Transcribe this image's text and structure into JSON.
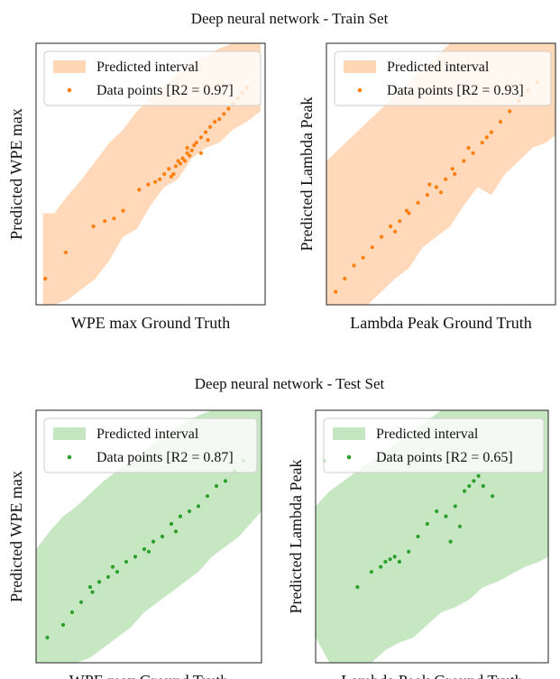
{
  "figure": {
    "train_title": "Deep neural network - Train Set",
    "test_title": "Deep neural network - Test Set"
  },
  "colors": {
    "train_fill": "#ffd7b5",
    "train_point": "#ff7f0e",
    "test_fill": "#c4e6c0",
    "test_point": "#2ca02c"
  },
  "chart_data": [
    {
      "type": "scatter",
      "title": "",
      "xlabel": "WPE max Ground Truth",
      "ylabel": "Predicted WPE max",
      "xlim": [
        0,
        1
      ],
      "ylim": [
        0,
        1
      ],
      "legend": {
        "position": "top-left",
        "interval_label": "Predicted interval",
        "points_label": "Data points [R2 = 0.97]"
      },
      "interval": {
        "x": [
          0.03,
          0.08,
          0.14,
          0.2,
          0.26,
          0.32,
          0.38,
          0.44,
          0.5,
          0.56,
          0.62,
          0.68,
          0.74,
          0.8,
          0.86,
          0.92,
          0.98
        ],
        "lower": [
          0.0,
          0.0,
          0.02,
          0.06,
          0.1,
          0.17,
          0.26,
          0.29,
          0.38,
          0.45,
          0.48,
          0.56,
          0.6,
          0.62,
          0.67,
          0.7,
          0.74
        ],
        "upper": [
          0.35,
          0.35,
          0.42,
          0.48,
          0.55,
          0.62,
          0.67,
          0.74,
          0.79,
          0.84,
          0.89,
          0.93,
          0.95,
          0.98,
          1.0,
          1.0,
          1.0
        ]
      },
      "points": {
        "x": [
          0.04,
          0.13,
          0.25,
          0.3,
          0.34,
          0.38,
          0.45,
          0.49,
          0.52,
          0.54,
          0.56,
          0.58,
          0.6,
          0.61,
          0.62,
          0.63,
          0.64,
          0.65,
          0.66,
          0.67,
          0.68,
          0.69,
          0.7,
          0.72,
          0.74,
          0.76,
          0.78,
          0.8,
          0.82,
          0.84,
          0.86,
          0.88,
          0.9,
          0.92,
          0.72,
          0.66,
          0.59,
          0.75
        ],
        "y": [
          0.1,
          0.2,
          0.3,
          0.32,
          0.33,
          0.36,
          0.44,
          0.46,
          0.47,
          0.48,
          0.5,
          0.52,
          0.5,
          0.53,
          0.55,
          0.54,
          0.56,
          0.55,
          0.58,
          0.57,
          0.59,
          0.61,
          0.62,
          0.64,
          0.66,
          0.68,
          0.7,
          0.71,
          0.73,
          0.75,
          0.77,
          0.79,
          0.81,
          0.83,
          0.58,
          0.6,
          0.49,
          0.63
        ]
      }
    },
    {
      "type": "scatter",
      "title": "",
      "xlabel": "Lambda Peak Ground Truth",
      "ylabel": "Predicted Lambda Peak",
      "xlim": [
        0,
        1
      ],
      "ylim": [
        0,
        1
      ],
      "legend": {
        "position": "top-left",
        "interval_label": "Predicted interval",
        "points_label": "Data points [R2 = 0.93]"
      },
      "interval": {
        "x": [
          0.0,
          0.06,
          0.12,
          0.18,
          0.24,
          0.3,
          0.36,
          0.42,
          0.48,
          0.54,
          0.6,
          0.66,
          0.72,
          0.78,
          0.84,
          0.9,
          0.96,
          1.0
        ],
        "lower": [
          0.0,
          0.0,
          0.0,
          0.0,
          0.05,
          0.1,
          0.14,
          0.22,
          0.26,
          0.3,
          0.38,
          0.45,
          0.42,
          0.5,
          0.55,
          0.6,
          0.62,
          0.65
        ],
        "upper": [
          0.55,
          0.6,
          0.65,
          0.7,
          0.75,
          0.8,
          0.85,
          0.9,
          0.95,
          1.0,
          1.0,
          1.0,
          1.0,
          1.0,
          1.0,
          1.0,
          1.0,
          1.0
        ]
      },
      "points": {
        "x": [
          0.04,
          0.08,
          0.12,
          0.16,
          0.2,
          0.24,
          0.28,
          0.32,
          0.36,
          0.4,
          0.44,
          0.48,
          0.52,
          0.56,
          0.6,
          0.64,
          0.68,
          0.72,
          0.76,
          0.8,
          0.84,
          0.88,
          0.92,
          0.5,
          0.45,
          0.55,
          0.3,
          0.35,
          0.62,
          0.7
        ],
        "y": [
          0.05,
          0.1,
          0.15,
          0.18,
          0.22,
          0.26,
          0.3,
          0.32,
          0.35,
          0.39,
          0.42,
          0.45,
          0.48,
          0.5,
          0.55,
          0.58,
          0.62,
          0.66,
          0.7,
          0.74,
          0.78,
          0.82,
          0.85,
          0.43,
          0.46,
          0.52,
          0.28,
          0.36,
          0.6,
          0.64
        ]
      }
    },
    {
      "type": "scatter",
      "title": "",
      "xlabel": "WPE max Ground Truth",
      "ylabel": "Predicted WPE max",
      "xlim": [
        0,
        1
      ],
      "ylim": [
        0,
        1
      ],
      "legend": {
        "position": "top-left",
        "interval_label": "Predicted interval",
        "points_label": "Data points [R2 = 0.87]"
      },
      "interval": {
        "x": [
          0.0,
          0.06,
          0.12,
          0.18,
          0.24,
          0.3,
          0.36,
          0.42,
          0.48,
          0.54,
          0.6,
          0.66,
          0.72,
          0.78,
          0.84,
          0.9,
          0.96,
          1.0
        ],
        "lower": [
          0.0,
          0.0,
          0.0,
          0.0,
          0.02,
          0.06,
          0.1,
          0.14,
          0.2,
          0.24,
          0.28,
          0.32,
          0.36,
          0.42,
          0.46,
          0.5,
          0.56,
          0.6
        ],
        "upper": [
          0.45,
          0.52,
          0.58,
          0.62,
          0.67,
          0.72,
          0.76,
          0.8,
          0.84,
          0.88,
          0.92,
          0.95,
          0.98,
          1.0,
          1.0,
          1.0,
          1.0,
          1.0
        ]
      },
      "points": {
        "x": [
          0.05,
          0.12,
          0.16,
          0.2,
          0.24,
          0.28,
          0.32,
          0.36,
          0.4,
          0.44,
          0.48,
          0.52,
          0.56,
          0.6,
          0.64,
          0.68,
          0.72,
          0.76,
          0.8,
          0.84,
          0.88,
          0.92,
          0.5,
          0.34,
          0.25,
          0.62
        ],
        "y": [
          0.1,
          0.15,
          0.2,
          0.24,
          0.3,
          0.32,
          0.34,
          0.36,
          0.4,
          0.42,
          0.45,
          0.48,
          0.5,
          0.55,
          0.58,
          0.6,
          0.62,
          0.66,
          0.7,
          0.72,
          0.76,
          0.8,
          0.44,
          0.38,
          0.28,
          0.52
        ]
      }
    },
    {
      "type": "scatter",
      "title": "",
      "xlabel": "Lambda Peak Ground Truth",
      "ylabel": "Predicted Lambda Peak",
      "xlim": [
        0,
        1
      ],
      "ylim": [
        0,
        1
      ],
      "legend": {
        "position": "top-left",
        "interval_label": "Predicted interval",
        "points_label": "Data points [R2 = 0.65]"
      },
      "interval": {
        "x": [
          0.0,
          0.06,
          0.12,
          0.18,
          0.24,
          0.3,
          0.36,
          0.42,
          0.48,
          0.54,
          0.6,
          0.66,
          0.72,
          0.78,
          0.84,
          0.9,
          0.96,
          1.0
        ],
        "lower": [
          0.1,
          0.0,
          0.0,
          0.0,
          0.0,
          0.05,
          0.08,
          0.1,
          0.15,
          0.2,
          0.22,
          0.25,
          0.3,
          0.32,
          0.35,
          0.38,
          0.4,
          0.42
        ],
        "upper": [
          0.62,
          0.68,
          0.72,
          0.76,
          0.8,
          0.84,
          0.88,
          0.92,
          0.96,
          1.0,
          1.0,
          1.0,
          1.0,
          1.0,
          1.0,
          1.0,
          1.0,
          1.0
        ]
      },
      "points": {
        "x": [
          0.04,
          0.18,
          0.24,
          0.28,
          0.3,
          0.32,
          0.34,
          0.36,
          0.4,
          0.44,
          0.48,
          0.52,
          0.56,
          0.6,
          0.64,
          0.66,
          0.68,
          0.7,
          0.72,
          0.76,
          0.58,
          0.62
        ],
        "y": [
          0.8,
          0.3,
          0.36,
          0.38,
          0.4,
          0.41,
          0.42,
          0.4,
          0.44,
          0.5,
          0.55,
          0.6,
          0.58,
          0.62,
          0.68,
          0.7,
          0.72,
          0.74,
          0.7,
          0.66,
          0.48,
          0.54
        ]
      }
    }
  ]
}
